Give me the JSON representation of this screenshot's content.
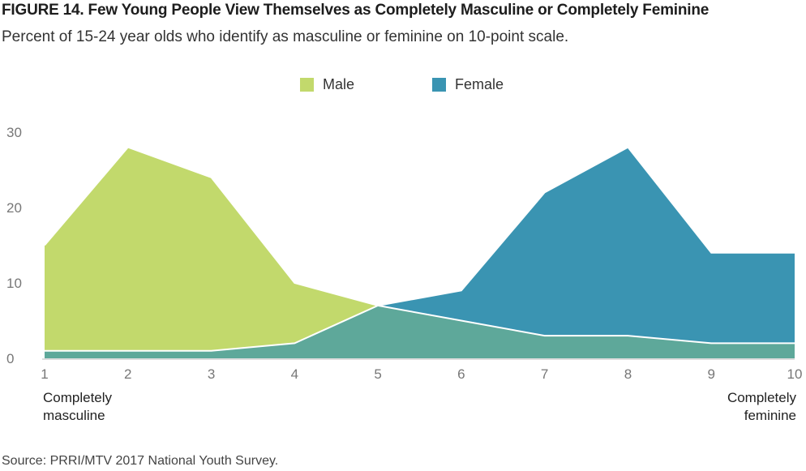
{
  "title": "FIGURE 14. Few Young People View Themselves as Completely Masculine or Completely Feminine",
  "subtitle": "Percent of 15-24 year olds who identify as masculine or feminine on 10-point scale.",
  "source": "Source: PRRI/MTV 2017 National Youth Survey.",
  "chart_data": {
    "type": "area",
    "title": "FIGURE 14. Few Young People View Themselves as Completely Masculine or Completely Feminine",
    "subtitle": "Percent of 15-24 year olds who identify as masculine or feminine on 10-point scale.",
    "x": [
      1,
      2,
      3,
      4,
      5,
      6,
      7,
      8,
      9,
      10
    ],
    "x_tick_labels": [
      "1",
      "2",
      "3",
      "4",
      "5",
      "6",
      "7",
      "8",
      "9",
      "10"
    ],
    "y_ticks": [
      0,
      10,
      20,
      30
    ],
    "ylim": [
      0,
      30
    ],
    "series": [
      {
        "name": "Male",
        "color": "#c2d96c",
        "values": [
          15,
          28,
          24,
          10,
          7,
          5,
          3,
          3,
          2,
          2
        ]
      },
      {
        "name": "Female",
        "color": "#3a94b2",
        "values": [
          1,
          1,
          1,
          2,
          7,
          9,
          22,
          28,
          14,
          14
        ]
      }
    ],
    "overlap_color": "#5ea89a",
    "endpoint_labels": {
      "left": [
        "Completely",
        "masculine"
      ],
      "right": [
        "Completely",
        "feminine"
      ]
    },
    "legend_position": "top-center",
    "grid": false
  }
}
